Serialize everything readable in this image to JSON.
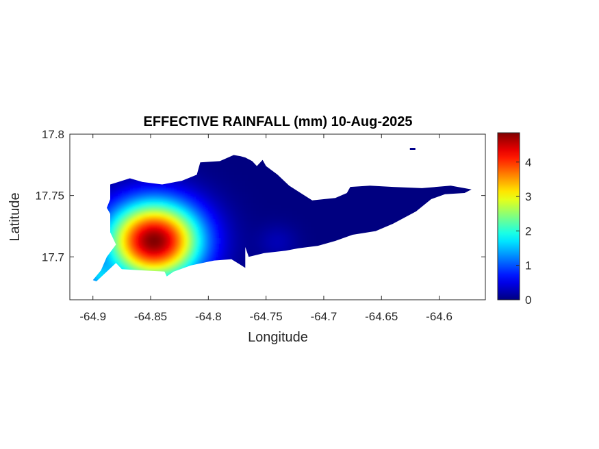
{
  "chart_data": {
    "type": "heatmap",
    "title": "EFFECTIVE RAINFALL (mm) 10-Aug-2025",
    "xlabel": "Longitude",
    "ylabel": "Latitude",
    "xlim": [
      -64.92,
      -64.56
    ],
    "ylim": [
      17.665,
      17.8
    ],
    "x_ticks": [
      -64.9,
      -64.85,
      -64.8,
      -64.75,
      -64.7,
      -64.65,
      -64.6
    ],
    "x_tick_labels": [
      "-64.9",
      "-64.85",
      "-64.8",
      "-64.75",
      "-64.7",
      "-64.65",
      "-64.6"
    ],
    "y_ticks": [
      17.7,
      17.75,
      17.8
    ],
    "y_tick_labels": [
      "17.7",
      "17.75",
      "17.8"
    ],
    "colorbar": {
      "colormap": "jet",
      "range": [
        0,
        4.85
      ],
      "ticks": [
        0,
        1,
        2,
        3,
        4
      ],
      "tick_labels": [
        "0",
        "1",
        "2",
        "3",
        "4"
      ]
    },
    "grid": false,
    "rainfall_peaks": [
      {
        "lon": -64.847,
        "lat": 17.713,
        "value": 4.85
      },
      {
        "lon": -64.895,
        "lat": 17.683,
        "value": 1.2
      },
      {
        "lon": -64.74,
        "lat": 17.712,
        "value": 0.25
      }
    ],
    "land_outline_lonlat": [
      [
        -64.897,
        17.68
      ],
      [
        -64.88,
        17.695
      ],
      [
        -64.875,
        17.69
      ],
      [
        -64.858,
        17.689
      ],
      [
        -64.838,
        17.688
      ],
      [
        -64.836,
        17.684
      ],
      [
        -64.83,
        17.688
      ],
      [
        -64.815,
        17.693
      ],
      [
        -64.795,
        17.697
      ],
      [
        -64.78,
        17.698
      ],
      [
        -64.773,
        17.694
      ],
      [
        -64.768,
        17.691
      ],
      [
        -64.768,
        17.708
      ],
      [
        -64.765,
        17.7
      ],
      [
        -64.752,
        17.703
      ],
      [
        -64.733,
        17.705
      ],
      [
        -64.722,
        17.707
      ],
      [
        -64.705,
        17.709
      ],
      [
        -64.69,
        17.713
      ],
      [
        -64.675,
        17.718
      ],
      [
        -64.655,
        17.721
      ],
      [
        -64.64,
        17.727
      ],
      [
        -64.62,
        17.737
      ],
      [
        -64.607,
        17.747
      ],
      [
        -64.595,
        17.751
      ],
      [
        -64.578,
        17.752
      ],
      [
        -64.572,
        17.755
      ],
      [
        -64.59,
        17.758
      ],
      [
        -64.615,
        17.756
      ],
      [
        -64.64,
        17.757
      ],
      [
        -64.66,
        17.758
      ],
      [
        -64.677,
        17.757
      ],
      [
        -64.68,
        17.752
      ],
      [
        -64.69,
        17.748
      ],
      [
        -64.71,
        17.746
      ],
      [
        -64.72,
        17.752
      ],
      [
        -64.73,
        17.758
      ],
      [
        -64.74,
        17.767
      ],
      [
        -64.75,
        17.774
      ],
      [
        -64.753,
        17.779
      ],
      [
        -64.758,
        17.774
      ],
      [
        -64.762,
        17.778
      ],
      [
        -64.768,
        17.781
      ],
      [
        -64.772,
        17.782
      ],
      [
        -64.778,
        17.783
      ],
      [
        -64.79,
        17.778
      ],
      [
        -64.807,
        17.777
      ],
      [
        -64.81,
        17.767
      ],
      [
        -64.823,
        17.762
      ],
      [
        -64.84,
        17.759
      ],
      [
        -64.857,
        17.761
      ],
      [
        -64.868,
        17.764
      ],
      [
        -64.878,
        17.761
      ],
      [
        -64.885,
        17.759
      ],
      [
        -64.885,
        17.747
      ],
      [
        -64.888,
        17.74
      ],
      [
        -64.885,
        17.735
      ],
      [
        -64.885,
        17.72
      ],
      [
        -64.88,
        17.71
      ],
      [
        -64.888,
        17.7
      ],
      [
        -64.893,
        17.689
      ],
      [
        -64.9,
        17.681
      ]
    ],
    "islets": [
      {
        "lon": -64.623,
        "lat": 17.788,
        "value": 0.05
      }
    ]
  }
}
